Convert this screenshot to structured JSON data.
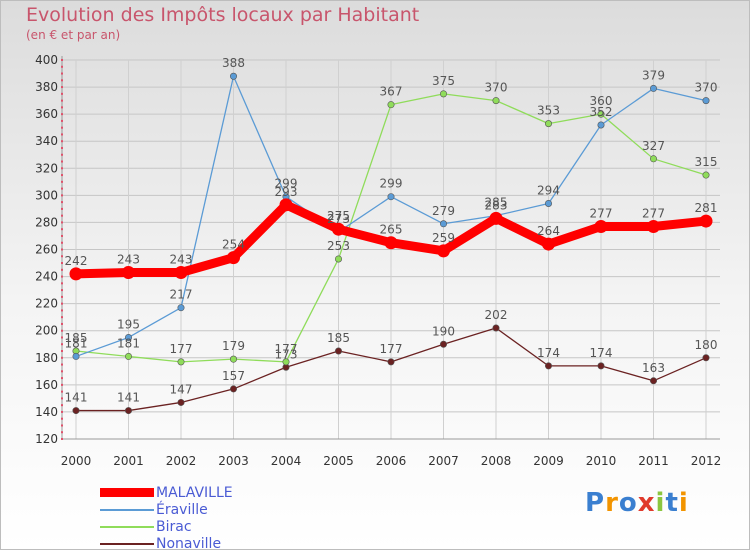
{
  "header": {
    "title": "Evolution des Impôts locaux par Habitant",
    "subtitle": "(en € et par an)"
  },
  "logo": {
    "text": "Proxiti"
  },
  "chart_data": {
    "type": "line",
    "title": "Evolution des Impôts locaux par Habitant",
    "subtitle": "(en € et par an)",
    "x": [
      "2000",
      "2001",
      "2002",
      "2003",
      "2004",
      "2005",
      "2006",
      "2007",
      "2008",
      "2009",
      "2010",
      "2011",
      "2012"
    ],
    "ylim": [
      120,
      400
    ],
    "yticks": [
      120,
      140,
      160,
      180,
      200,
      220,
      240,
      260,
      280,
      300,
      320,
      340,
      360,
      380,
      400
    ],
    "grid": true,
    "legend_position": "bottom-left",
    "series": [
      {
        "name": "MALAVILLE",
        "color": "#ff0000",
        "values": [
          242,
          243,
          243,
          254,
          293,
          275,
          265,
          259,
          283,
          264,
          277,
          277,
          281
        ]
      },
      {
        "name": "Éraville",
        "color": "#5b9bd5",
        "values": [
          181,
          195,
          217,
          388,
          299,
          273,
          299,
          279,
          285,
          294,
          352,
          379,
          370
        ]
      },
      {
        "name": "Birac",
        "color": "#8fdc5a",
        "values": [
          185,
          181,
          177,
          179,
          177,
          253,
          367,
          375,
          370,
          353,
          360,
          327,
          315
        ]
      },
      {
        "name": "Nonaville",
        "color": "#6b2222",
        "values": [
          141,
          141,
          147,
          157,
          173,
          185,
          177,
          190,
          202,
          174,
          174,
          163,
          180
        ]
      }
    ]
  }
}
